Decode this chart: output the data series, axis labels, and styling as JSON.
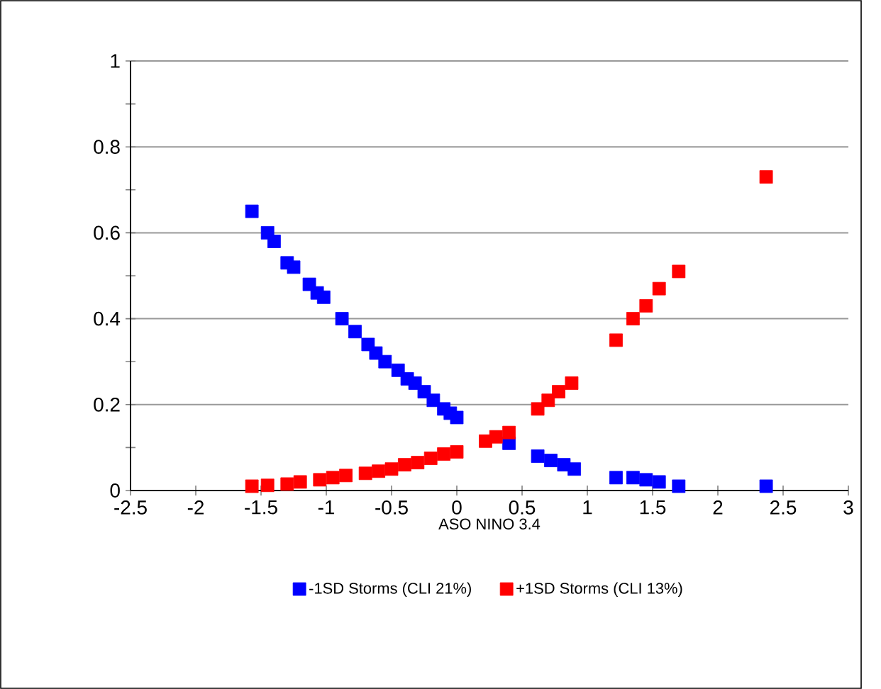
{
  "chart_data": {
    "type": "scatter",
    "xlabel": "ASO  NINO 3.4",
    "xlim": [
      -2.5,
      3
    ],
    "xticks": [
      -2.5,
      -2,
      -1.5,
      -1,
      -0.5,
      0,
      0.5,
      1,
      1.5,
      2,
      2.5,
      3
    ],
    "ylim": [
      0,
      1
    ],
    "yticks": [
      0,
      0.2,
      0.4,
      0.6,
      0.8,
      1
    ],
    "grid": "y",
    "legend": "bottom",
    "marker": "square",
    "series": [
      {
        "name": "-1SD Storms (CLI 21%)",
        "color": "#0000ff",
        "x": [
          -1.57,
          -1.45,
          -1.4,
          -1.3,
          -1.25,
          -1.13,
          -1.07,
          -1.02,
          -0.88,
          -0.78,
          -0.68,
          -0.62,
          -0.55,
          -0.45,
          -0.38,
          -0.32,
          -0.25,
          -0.18,
          -0.1,
          -0.05,
          0.0,
          0.22,
          0.33,
          0.4,
          0.62,
          0.72,
          0.82,
          0.9,
          1.22,
          1.35,
          1.45,
          1.55,
          1.7,
          2.37
        ],
        "values": [
          0.65,
          0.6,
          0.58,
          0.53,
          0.52,
          0.48,
          0.46,
          0.45,
          0.4,
          0.37,
          0.34,
          0.32,
          0.3,
          0.28,
          0.26,
          0.25,
          0.23,
          0.21,
          0.19,
          0.18,
          0.17,
          null,
          null,
          0.11,
          0.08,
          0.07,
          0.06,
          0.05,
          0.03,
          0.03,
          0.025,
          0.02,
          0.01,
          0.01
        ]
      },
      {
        "name": "+1SD Storms (CLI 13%)",
        "color": "#ff0000",
        "x": [
          -1.57,
          -1.45,
          -1.3,
          -1.2,
          -1.05,
          -0.95,
          -0.85,
          -0.7,
          -0.6,
          -0.5,
          -0.4,
          -0.3,
          -0.2,
          -0.1,
          0.0,
          0.22,
          0.3,
          0.4,
          0.62,
          0.7,
          0.78,
          0.88,
          1.22,
          1.35,
          1.45,
          1.55,
          1.7,
          2.37
        ],
        "values": [
          0.01,
          0.012,
          0.015,
          0.02,
          0.025,
          0.03,
          0.035,
          0.04,
          0.045,
          0.05,
          0.06,
          0.065,
          0.075,
          0.085,
          0.09,
          0.115,
          0.125,
          0.135,
          0.19,
          0.21,
          0.23,
          0.25,
          0.35,
          0.4,
          0.43,
          0.47,
          0.51,
          0.73
        ]
      }
    ]
  }
}
